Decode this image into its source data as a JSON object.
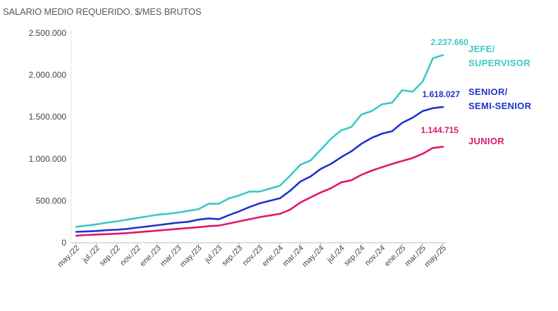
{
  "chart_data": {
    "type": "line",
    "title": "SALARIO MEDIO REQUERIDO. $/MES BRUTOS",
    "xlabel": "",
    "ylabel": "",
    "ylim": [
      0,
      2500000
    ],
    "y_ticks": [
      "0",
      "500.000",
      "1.000.000",
      "1.500.000",
      "2.000.000",
      "2.500.000"
    ],
    "y_tick_values": [
      0,
      500000,
      1000000,
      1500000,
      2000000,
      2500000
    ],
    "x_tick_labels": [
      "may./22",
      "jul./22",
      "sep./22",
      "nov./22",
      "ene./23",
      "mar./23",
      "may./23",
      "jul./23",
      "sep./23",
      "nov./23",
      "ene./24",
      "mar./24",
      "may./24",
      "jul./24",
      "sep./24",
      "nov./24",
      "ene./25",
      "mar./25",
      "may./25"
    ],
    "x": [
      "may./22",
      "jun./22",
      "jul./22",
      "ago./22",
      "sep./22",
      "oct./22",
      "nov./22",
      "dic./22",
      "ene./23",
      "feb./23",
      "mar./23",
      "abr./23",
      "may./23",
      "jun./23",
      "jul./23",
      "ago./23",
      "sep./23",
      "oct./23",
      "nov./23",
      "dic./23",
      "ene./24",
      "feb./24",
      "mar./24",
      "abr./24",
      "may./24",
      "jun./24",
      "jul./24",
      "ago./24",
      "sep./24",
      "oct./24",
      "nov./24",
      "dic./24",
      "ene./25",
      "feb./25",
      "mar./25",
      "abr./25",
      "may./25"
    ],
    "series": [
      {
        "name": "JEFE/ SUPERVISOR",
        "legend_lines": [
          "JEFE/",
          "SUPERVISOR"
        ],
        "color": "#3cc8c8",
        "end_label": "2.237.660",
        "values": [
          190000,
          205000,
          220000,
          240000,
          255000,
          275000,
          295000,
          315000,
          335000,
          345000,
          360000,
          380000,
          400000,
          465000,
          465000,
          530000,
          565000,
          610000,
          610000,
          645000,
          680000,
          800000,
          930000,
          980000,
          1110000,
          1240000,
          1340000,
          1380000,
          1530000,
          1570000,
          1650000,
          1670000,
          1820000,
          1800000,
          1920000,
          2200000,
          2237660
        ]
      },
      {
        "name": "SENIOR/ SEMI-SENIOR",
        "legend_lines": [
          "SENIOR/",
          "SEMI-SENIOR"
        ],
        "color": "#2233cc",
        "end_label": "1.618.027",
        "values": [
          130000,
          135000,
          140000,
          150000,
          155000,
          165000,
          180000,
          195000,
          210000,
          225000,
          240000,
          250000,
          275000,
          290000,
          280000,
          330000,
          375000,
          425000,
          470000,
          500000,
          530000,
          620000,
          730000,
          790000,
          880000,
          940000,
          1020000,
          1090000,
          1180000,
          1250000,
          1300000,
          1330000,
          1430000,
          1490000,
          1570000,
          1605000,
          1618027
        ]
      },
      {
        "name": "JUNIOR",
        "legend_lines": [
          "JUNIOR"
        ],
        "color": "#e0166f",
        "end_label": "1.144.715",
        "values": [
          85000,
          92000,
          98000,
          102000,
          108000,
          115000,
          125000,
          135000,
          145000,
          155000,
          165000,
          175000,
          185000,
          198000,
          205000,
          230000,
          255000,
          280000,
          305000,
          325000,
          345000,
          395000,
          480000,
          540000,
          600000,
          650000,
          720000,
          745000,
          810000,
          860000,
          900000,
          940000,
          975000,
          1010000,
          1060000,
          1130000,
          1144715
        ]
      }
    ],
    "grid": false,
    "legend_position": "right"
  }
}
